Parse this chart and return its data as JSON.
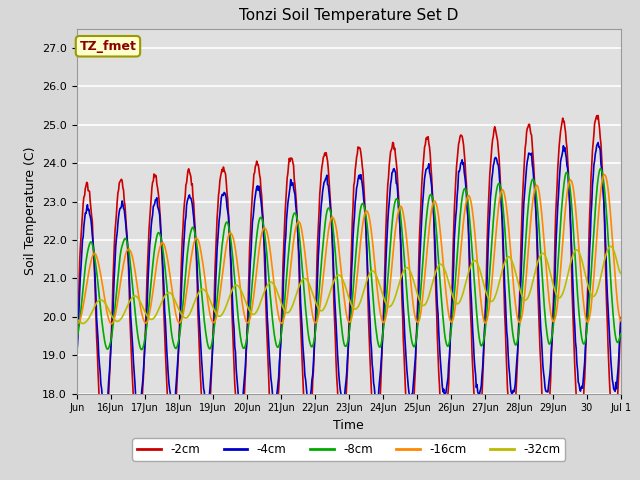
{
  "title": "Tonzi Soil Temperature Set D",
  "xlabel": "Time",
  "ylabel": "Soil Temperature (C)",
  "ylim": [
    18.0,
    27.5
  ],
  "yticks": [
    18.0,
    19.0,
    20.0,
    21.0,
    22.0,
    23.0,
    24.0,
    25.0,
    26.0,
    27.0
  ],
  "fig_bg": "#d8d8d8",
  "plot_bg": "#e0e0e0",
  "annotation_text": "TZ_fmet",
  "annotation_bg": "#ffffcc",
  "annotation_fg": "#8b0000",
  "series": [
    {
      "label": "-2cm",
      "color": "#cc0000"
    },
    {
      "label": "-4cm",
      "color": "#0000cc"
    },
    {
      "label": "-8cm",
      "color": "#00aa00"
    },
    {
      "label": "-16cm",
      "color": "#ff8800"
    },
    {
      "label": "-32cm",
      "color": "#bbbb00"
    }
  ],
  "xtick_positions": [
    15,
    16,
    17,
    18,
    19,
    20,
    21,
    22,
    23,
    24,
    25,
    26,
    27,
    28,
    29,
    30,
    31
  ],
  "xtick_labels": [
    "Jun",
    "16Jun",
    "17Jun",
    "18Jun",
    "19Jun",
    "20Jun",
    "21Jun",
    "22Jun",
    "23Jun",
    "24Jun",
    "25Jun",
    "26Jun",
    "27Jun",
    "28Jun",
    "29Jun",
    "30",
    "Jul 1"
  ],
  "line_width": 1.2,
  "x_start": 15.0,
  "x_end": 31.0
}
